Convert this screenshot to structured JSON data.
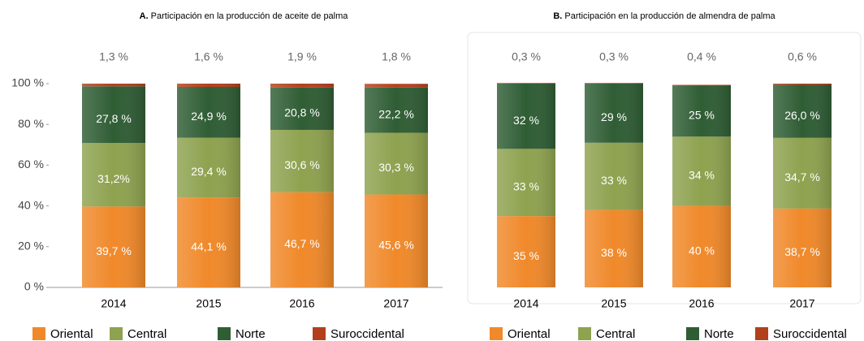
{
  "chart_data": [
    {
      "type": "bar",
      "stacked": true,
      "panel": "A.",
      "title": "Participación en la producción de aceite de palma",
      "categories": [
        "2014",
        "2015",
        "2016",
        "2017"
      ],
      "ylim": [
        0,
        100
      ],
      "yticks": [
        {
          "value": 0,
          "label": "0 %"
        },
        {
          "value": 20,
          "label": "20 %"
        },
        {
          "value": 40,
          "label": "40 %"
        },
        {
          "value": 60,
          "label": "60 %"
        },
        {
          "value": 80,
          "label": "80 %"
        },
        {
          "value": 100,
          "label": "100 %"
        }
      ],
      "series": [
        {
          "name": "Oriental",
          "color": "#f0892a",
          "values": [
            39.7,
            44.1,
            46.7,
            45.6
          ],
          "value_labels": [
            "39,7 %",
            "44,1 %",
            "46,7 %",
            "45,6 %"
          ]
        },
        {
          "name": "Central",
          "color": "#8ea24f",
          "values": [
            31.2,
            29.4,
            30.6,
            30.3
          ],
          "value_labels": [
            "31,2%",
            "29,4 %",
            "30,6 %",
            "30,3 %"
          ]
        },
        {
          "name": "Norte",
          "color": "#2f5d34",
          "values": [
            27.8,
            24.9,
            20.8,
            22.2
          ],
          "value_labels": [
            "27,8 %",
            "24,9 %",
            "20,8 %",
            "22,2 %"
          ]
        },
        {
          "name": "Suroccidental",
          "color": "#b3401c",
          "values": [
            1.3,
            1.6,
            1.9,
            1.8
          ],
          "value_labels": [
            "1,3 %",
            "1,6 %",
            "1,9 %",
            "1,8 %"
          ]
        }
      ]
    },
    {
      "type": "bar",
      "stacked": true,
      "panel": "B.",
      "title": "Participación en la producción de almendra de palma",
      "categories": [
        "2014",
        "2015",
        "2016",
        "2017"
      ],
      "ylim": [
        0,
        100
      ],
      "series": [
        {
          "name": "Oriental",
          "color": "#f0892a",
          "values": [
            35,
            38,
            40,
            38.7
          ],
          "value_labels": [
            "35 %",
            "38 %",
            "40 %",
            "38,7 %"
          ]
        },
        {
          "name": "Central",
          "color": "#8ea24f",
          "values": [
            33,
            33,
            34,
            34.7
          ],
          "value_labels": [
            "33 %",
            "33 %",
            "34 %",
            "34,7 %"
          ]
        },
        {
          "name": "Norte",
          "color": "#2f5d34",
          "values": [
            32,
            29,
            25,
            26.0
          ],
          "value_labels": [
            "32 %",
            "29 %",
            "25 %",
            "26,0 %"
          ]
        },
        {
          "name": "Suroccidental",
          "color": "#b3401c",
          "values": [
            0.3,
            0.3,
            0.4,
            0.6
          ],
          "value_labels": [
            "0,3 %",
            "0,3 %",
            "0,4 %",
            "0,6 %"
          ]
        }
      ]
    }
  ]
}
